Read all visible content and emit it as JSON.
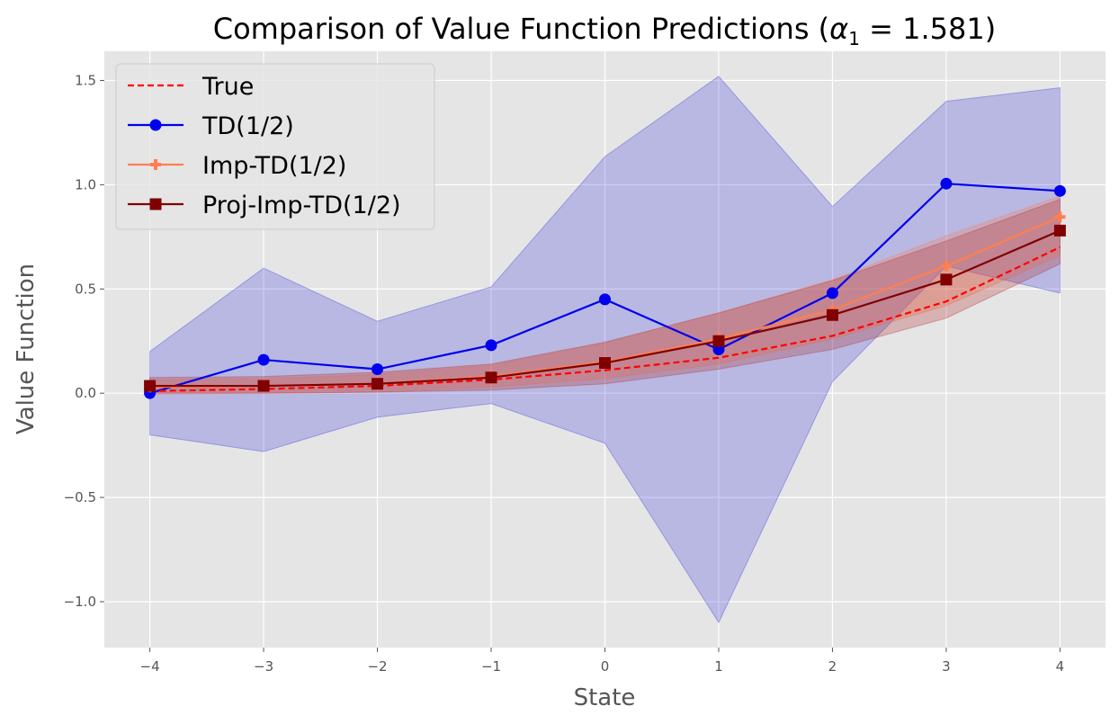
{
  "chart_data": {
    "type": "line",
    "title_prefix": "Comparison of Value Function Predictions (",
    "title_symbol": "α",
    "title_subscript": "1",
    "title_suffix": " = 1.581)",
    "xlabel": "State",
    "ylabel": "Value Function",
    "x": [
      -4,
      -3,
      -2,
      -1,
      0,
      1,
      2,
      3,
      4
    ],
    "xlim": [
      -4.4,
      4.4
    ],
    "ylim": [
      -1.22,
      1.64
    ],
    "xticks": [
      -4,
      -3,
      -2,
      -1,
      0,
      1,
      2,
      3,
      4
    ],
    "xtick_labels": [
      "−4",
      "−3",
      "−2",
      "−1",
      "0",
      "1",
      "2",
      "3",
      "4"
    ],
    "yticks": [
      -1.0,
      -0.5,
      0.0,
      0.5,
      1.0,
      1.5
    ],
    "ytick_labels": [
      "−1.0",
      "−0.5",
      "0.0",
      "0.5",
      "1.0",
      "1.5"
    ],
    "grid": true,
    "legend_position": "top-left",
    "series": [
      {
        "name": "True",
        "color": "#ff0000",
        "style": "dashed",
        "marker": "none",
        "values": [
          0.01,
          0.02,
          0.035,
          0.065,
          0.11,
          0.17,
          0.275,
          0.44,
          0.7
        ]
      },
      {
        "name": "TD(1/2)",
        "color": "#0000ee",
        "style": "solid",
        "marker": "circle",
        "values": [
          0.0,
          0.16,
          0.115,
          0.23,
          0.45,
          0.21,
          0.48,
          1.005,
          0.97
        ],
        "band_color": "#3333dd",
        "band_lower": [
          -0.2,
          -0.28,
          -0.115,
          -0.05,
          -0.24,
          -1.1,
          0.055,
          0.61,
          0.48
        ],
        "band_upper": [
          0.2,
          0.6,
          0.345,
          0.51,
          1.135,
          1.52,
          0.895,
          1.4,
          1.465
        ]
      },
      {
        "name": "Imp-TD(1/2)",
        "color": "#ff7f50",
        "style": "solid",
        "marker": "plus",
        "values": [
          0.03,
          0.035,
          0.045,
          0.08,
          0.15,
          0.26,
          0.4,
          0.61,
          0.845
        ],
        "band_color": "#ff7f50",
        "band_lower": [
          -0.005,
          0.0,
          0.005,
          0.03,
          0.07,
          0.14,
          0.26,
          0.42,
          0.66
        ],
        "band_upper": [
          0.065,
          0.07,
          0.09,
          0.135,
          0.24,
          0.385,
          0.545,
          0.755,
          0.945
        ]
      },
      {
        "name": "Proj-Imp-TD(1/2)",
        "color": "#800000",
        "style": "solid",
        "marker": "square",
        "values": [
          0.035,
          0.035,
          0.045,
          0.075,
          0.145,
          0.25,
          0.375,
          0.545,
          0.78
        ],
        "band_color": "#b03030",
        "band_lower": [
          0.0,
          0.0,
          0.005,
          0.015,
          0.045,
          0.115,
          0.21,
          0.36,
          0.62
        ],
        "band_upper": [
          0.075,
          0.08,
          0.1,
          0.14,
          0.245,
          0.385,
          0.54,
          0.73,
          0.93
        ]
      }
    ]
  }
}
